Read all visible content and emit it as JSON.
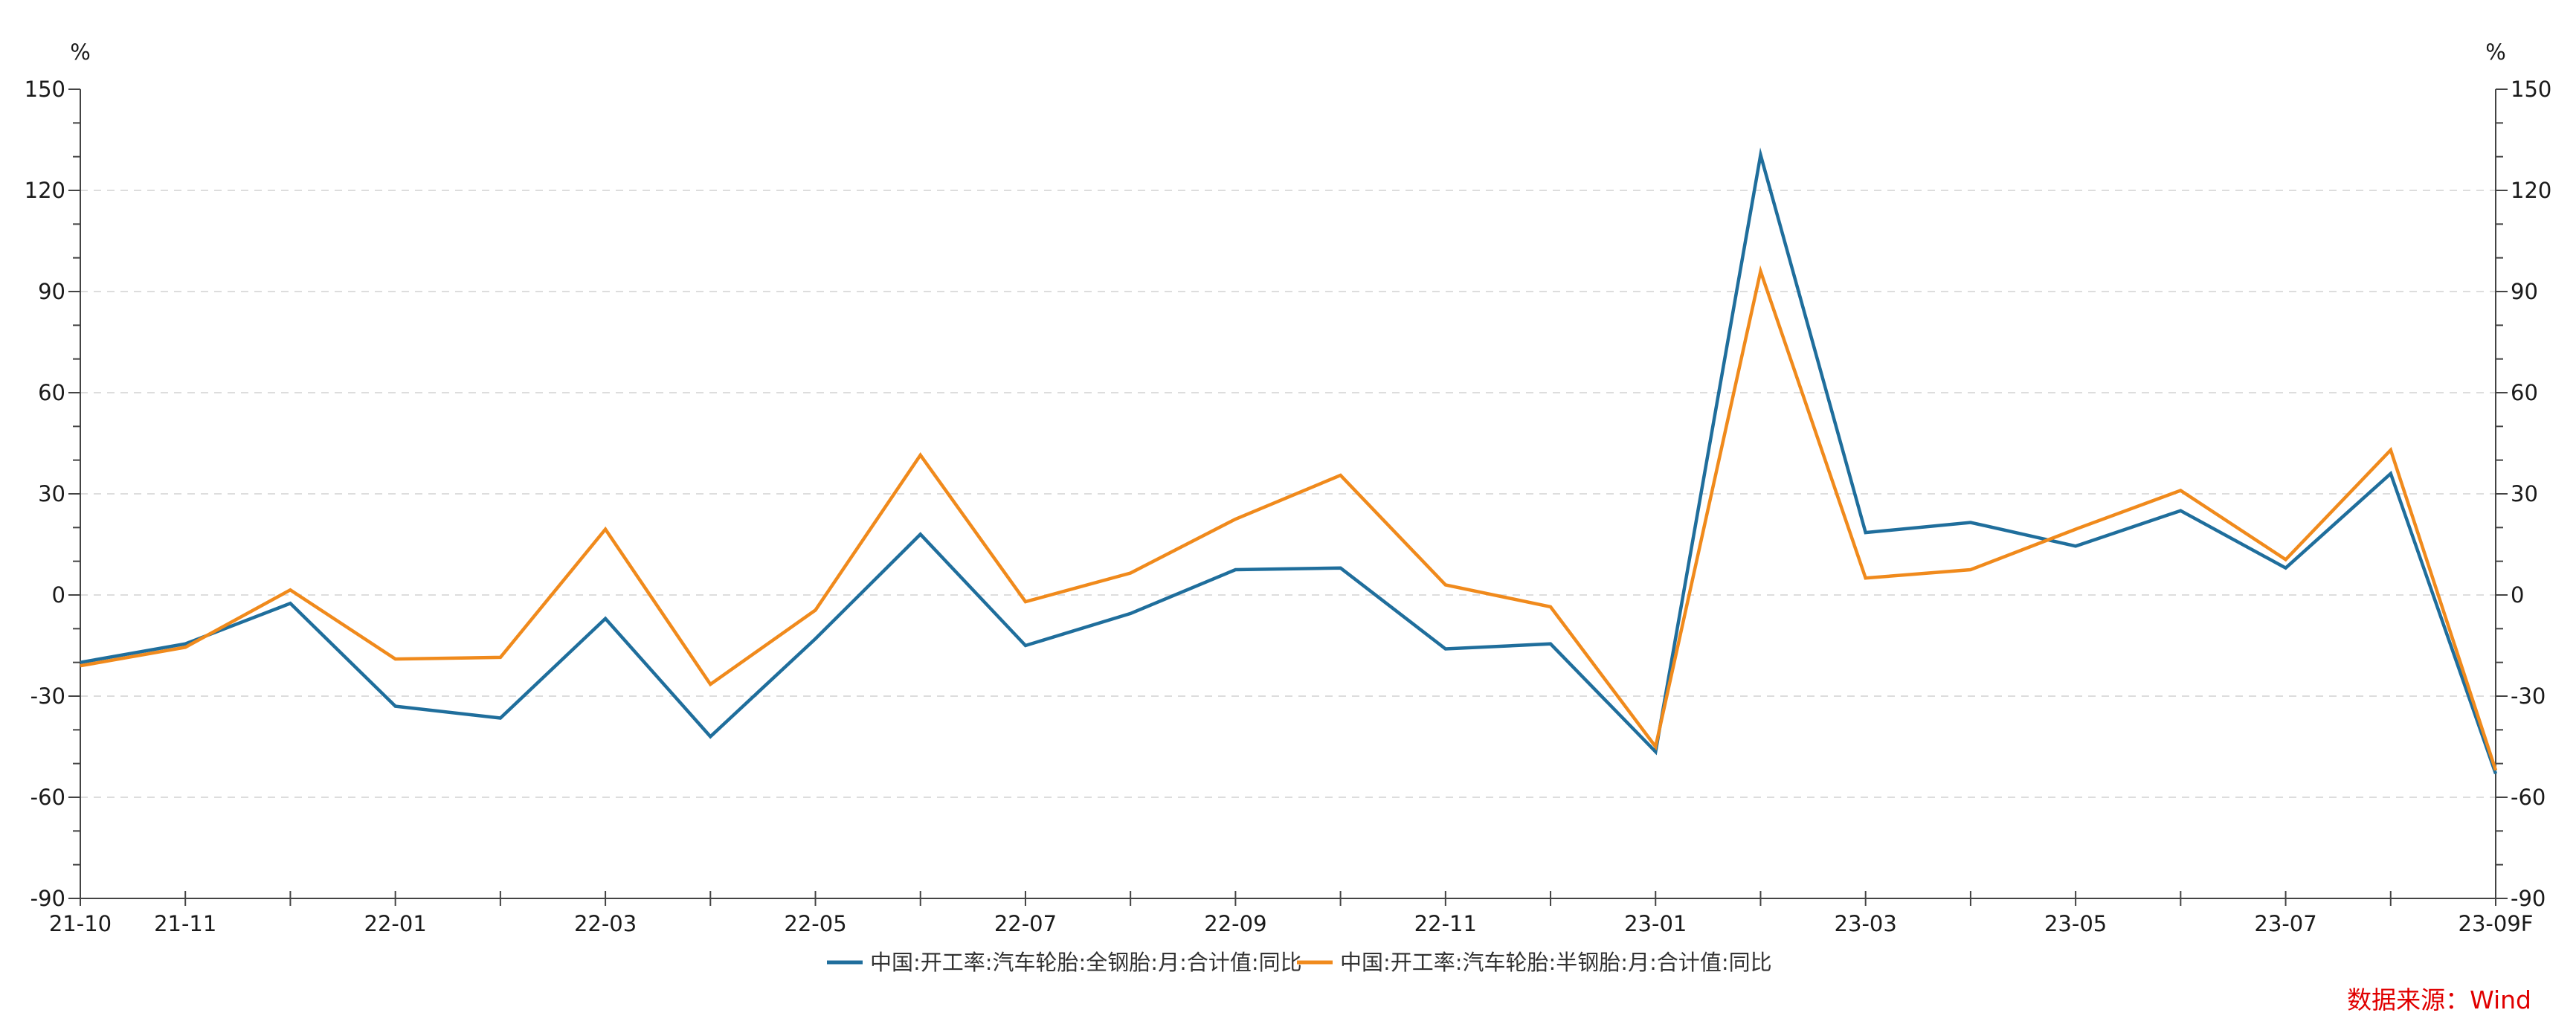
{
  "chart_data": {
    "type": "line",
    "title": "",
    "xlabel": "",
    "ylabel": "%",
    "ylabel_right": "%",
    "ylim": [
      -90,
      150
    ],
    "yticks": [
      150,
      120,
      90,
      60,
      30,
      0,
      -30,
      -60,
      -90
    ],
    "y_minor_step": 10,
    "grid": "horizontal-dashed",
    "legend": "bottom-center",
    "x": [
      "21-10",
      "21-11",
      "21-12",
      "22-01",
      "22-02",
      "22-03",
      "22-04",
      "22-05",
      "22-06",
      "22-07",
      "22-08",
      "22-09",
      "22-10",
      "22-11",
      "22-12",
      "23-01",
      "23-02",
      "23-03",
      "23-04",
      "23-05",
      "23-06",
      "23-07",
      "23-08",
      "23-09F"
    ],
    "x_tick_labels": [
      "21-10",
      "21-11",
      "22-01",
      "22-03",
      "22-05",
      "22-07",
      "22-09",
      "22-11",
      "23-01",
      "23-03",
      "23-05",
      "23-07",
      "23-09F"
    ],
    "series": [
      {
        "name": "中国:开工率:汽车轮胎:全钢胎:月:合计值:同比",
        "color": "#1f6e9c",
        "values": [
          -20,
          -14.5,
          -2.5,
          -33,
          -36.5,
          -7,
          -42,
          -13,
          18,
          -15,
          -5.5,
          7.5,
          8,
          -16,
          -14.5,
          -46.5,
          130.5,
          18.5,
          21.5,
          14.5,
          25,
          8,
          36,
          -53
        ]
      },
      {
        "name": "中国:开工率:汽车轮胎:半钢胎:月:合计值:同比",
        "color": "#f08a1c",
        "values": [
          -21,
          -15.5,
          1.5,
          -19,
          -18.5,
          19.5,
          -26.5,
          -4.5,
          41.5,
          -2,
          6.5,
          22.5,
          35.5,
          3,
          -3.5,
          -45,
          96,
          5,
          7.5,
          19.5,
          31,
          10.5,
          43,
          -52
        ]
      }
    ]
  },
  "source": "数据来源：Wind"
}
